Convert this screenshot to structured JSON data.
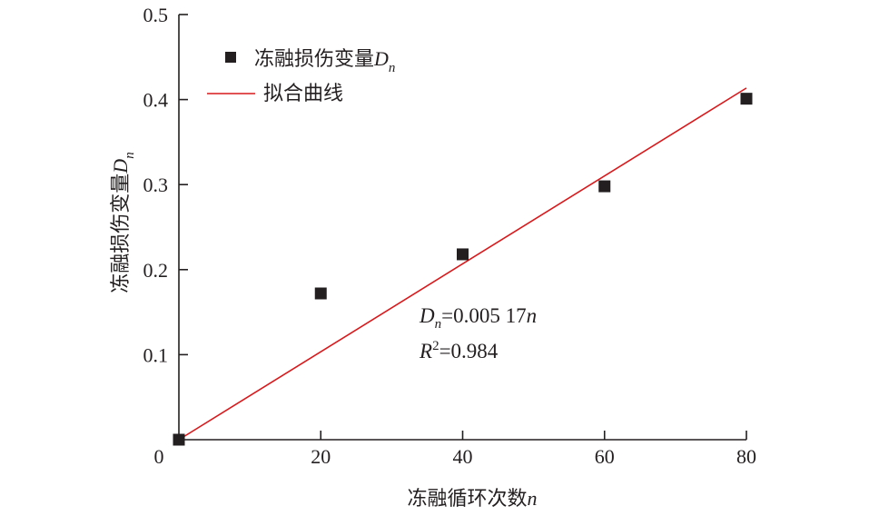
{
  "chart_data": {
    "type": "scatter",
    "title": "",
    "xlabel": "冻融循环次数",
    "xlabel_var": "n",
    "ylabel": "冻融损伤变量",
    "ylabel_var": "D",
    "ylabel_sub": "n",
    "xlim": [
      0,
      80
    ],
    "ylim": [
      0,
      0.5
    ],
    "xticks": [
      20,
      40,
      60,
      80
    ],
    "yticks": [
      0.1,
      0.2,
      0.3,
      0.4,
      0.5
    ],
    "origin_label": "0",
    "grid": false,
    "legend_position": "top-left",
    "series": [
      {
        "name": "冻融损伤变量",
        "name_var": "D",
        "name_sub": "n",
        "marker": "square",
        "color": "#231f20",
        "x": [
          0,
          20,
          40,
          60,
          80
        ],
        "y": [
          0.0,
          0.172,
          0.218,
          0.298,
          0.401
        ]
      },
      {
        "name": "拟合曲线",
        "marker": "line",
        "color": "#d7191c",
        "x": [
          0,
          80
        ],
        "y": [
          0.0,
          0.4136
        ]
      }
    ],
    "annotation": {
      "line1_var": "D",
      "line1_sub": "n",
      "line1_rest": "=0.005 17",
      "line1_tail": "n",
      "line2_var": "R",
      "line2_sup": "2",
      "line2_rest": "=0.984"
    }
  }
}
